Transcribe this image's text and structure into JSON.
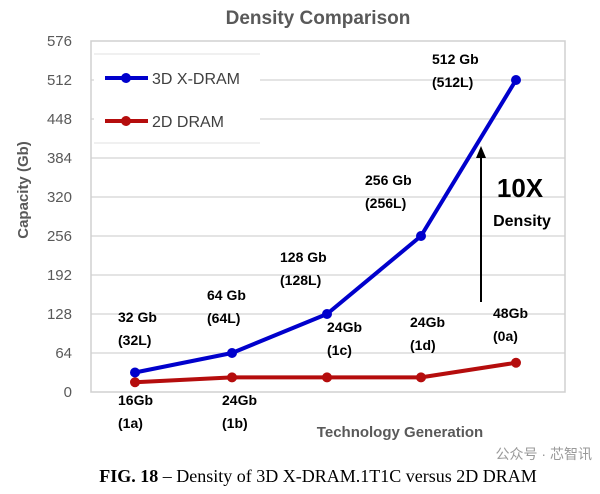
{
  "chart_data": {
    "type": "line",
    "title": "Density Comparison",
    "xlabel": "Technology Generation",
    "ylabel": "Capacity (Gb)",
    "ylim": [
      0,
      576
    ],
    "yticks": [
      0,
      64,
      128,
      192,
      256,
      320,
      384,
      448,
      512,
      576
    ],
    "grid": true,
    "legend_placement": "top-left",
    "series": [
      {
        "name": "3D X-DRAM",
        "color": "#0000CC",
        "values": [
          32,
          64,
          128,
          256,
          512
        ],
        "labels": [
          [
            "32 Gb",
            "(32L)"
          ],
          [
            "64 Gb",
            "(64L)"
          ],
          [
            "128 Gb",
            "(128L)"
          ],
          [
            "256 Gb",
            "(256L)"
          ],
          [
            "512 Gb",
            "(512L)"
          ]
        ]
      },
      {
        "name": "2D DRAM",
        "color": "#B50D0D",
        "values": [
          16,
          24,
          24,
          24,
          48
        ],
        "labels": [
          [
            "16Gb",
            "(1a)"
          ],
          [
            "24Gb",
            "(1b)"
          ],
          [
            "24Gb",
            "(1c)"
          ],
          [
            "24Gb",
            "(1d)"
          ],
          [
            "48Gb",
            "(0a)"
          ]
        ]
      }
    ],
    "annotation": {
      "big": "10X",
      "small": "Density"
    }
  },
  "caption": {
    "prefix": "FIG. 18",
    "text": " – Density of 3D X-DRAM.1T1C versus 2D DRAM"
  },
  "watermark": "公众号 · 芯智讯"
}
